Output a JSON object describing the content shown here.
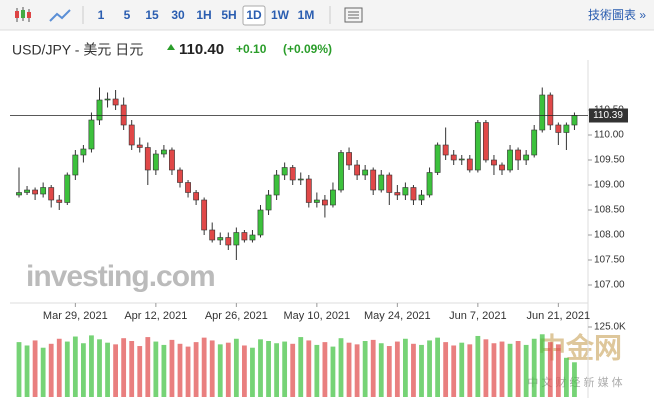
{
  "toolbar": {
    "intervals": [
      "1",
      "5",
      "15",
      "30",
      "1H",
      "5H",
      "1D",
      "1W",
      "1M"
    ],
    "active": "1D",
    "link": "技術圖表 »"
  },
  "header": {
    "instrument": "USD/JPY - 美元 日元",
    "price": "110.40",
    "change": "+0.10",
    "change_pct": "(+0.09%)"
  },
  "chart_data": {
    "type": "candlestick",
    "watermark": "investing.com",
    "watermark_2": "中金网",
    "watermark_3": "中 文 财 经 新 媒 体",
    "last_price_label": 110.39,
    "up_color": "#3cc13c",
    "down_color": "#e04848",
    "categories": [
      null,
      null,
      null,
      null,
      null,
      null,
      null,
      "Mar 29, 2021",
      null,
      null,
      null,
      null,
      null,
      null,
      null,
      null,
      null,
      "Apr 12, 2021",
      null,
      null,
      null,
      null,
      null,
      null,
      null,
      null,
      null,
      "Apr 26, 2021",
      null,
      null,
      null,
      null,
      null,
      null,
      null,
      null,
      null,
      "May 10, 2021",
      null,
      null,
      null,
      null,
      null,
      null,
      null,
      null,
      null,
      "May 24, 2021",
      null,
      null,
      null,
      null,
      null,
      null,
      null,
      null,
      null,
      "Jun 7, 2021",
      null,
      null,
      null,
      null,
      null,
      null,
      null,
      null,
      null,
      "Jun 21, 2021",
      null,
      null
    ],
    "open": [
      108.8,
      108.85,
      108.9,
      108.82,
      108.95,
      108.7,
      108.65,
      109.2,
      109.6,
      109.72,
      110.3,
      110.7,
      110.72,
      110.6,
      110.2,
      109.8,
      109.75,
      109.3,
      109.62,
      109.7,
      109.3,
      109.05,
      108.85,
      108.7,
      108.1,
      107.9,
      107.95,
      107.8,
      108.05,
      107.9,
      108.0,
      108.5,
      108.8,
      109.2,
      109.35,
      109.1,
      109.12,
      108.65,
      108.7,
      108.6,
      108.9,
      109.65,
      109.4,
      109.2,
      109.3,
      108.9,
      109.2,
      108.85,
      108.8,
      108.95,
      108.7,
      108.8,
      109.25,
      109.8,
      109.6,
      109.5,
      109.52,
      109.3,
      110.25,
      109.5,
      109.4,
      109.3,
      109.7,
      109.5,
      109.6,
      110.1,
      110.8,
      110.2,
      110.05,
      110.2
    ],
    "high": [
      109.35,
      108.98,
      108.95,
      109.05,
      109.0,
      108.8,
      109.25,
      109.7,
      109.8,
      110.45,
      110.95,
      110.85,
      110.9,
      110.75,
      110.3,
      109.95,
      109.85,
      109.7,
      109.8,
      109.75,
      109.35,
      109.1,
      108.9,
      108.75,
      108.25,
      108.05,
      108.05,
      108.15,
      108.1,
      108.1,
      108.6,
      108.9,
      109.3,
      109.45,
      109.4,
      109.25,
      109.2,
      108.85,
      108.8,
      109.05,
      109.7,
      109.75,
      109.5,
      109.4,
      109.35,
      109.3,
      109.25,
      109.0,
      109.05,
      109.0,
      108.9,
      109.35,
      109.85,
      110.15,
      109.7,
      109.6,
      109.6,
      110.3,
      110.3,
      109.6,
      109.45,
      109.8,
      109.75,
      109.7,
      110.2,
      110.95,
      110.85,
      110.25,
      110.25,
      110.45
    ],
    "low": [
      108.75,
      108.8,
      108.7,
      108.75,
      108.55,
      108.5,
      108.6,
      109.1,
      109.45,
      109.65,
      110.2,
      110.55,
      110.5,
      110.1,
      109.7,
      109.65,
      109.0,
      109.2,
      109.55,
      109.2,
      108.95,
      108.75,
      108.6,
      108.0,
      107.85,
      107.8,
      107.7,
      107.5,
      107.85,
      107.85,
      107.95,
      108.4,
      108.7,
      109.1,
      109.0,
      109.0,
      108.55,
      108.55,
      108.35,
      108.55,
      108.85,
      109.3,
      109.1,
      109.1,
      108.8,
      108.85,
      108.6,
      108.7,
      108.7,
      108.6,
      108.6,
      108.75,
      109.2,
      109.5,
      109.4,
      109.4,
      109.25,
      109.25,
      109.45,
      109.2,
      109.2,
      109.25,
      109.3,
      109.4,
      109.55,
      110.05,
      110.1,
      109.8,
      109.7,
      110.1
    ],
    "close": [
      108.85,
      108.9,
      108.82,
      108.95,
      108.7,
      108.65,
      109.2,
      109.6,
      109.72,
      110.3,
      110.7,
      110.72,
      110.6,
      110.2,
      109.8,
      109.75,
      109.3,
      109.62,
      109.7,
      109.3,
      109.05,
      108.85,
      108.7,
      108.1,
      107.9,
      107.95,
      107.8,
      108.05,
      107.9,
      108.0,
      108.5,
      108.8,
      109.2,
      109.35,
      109.1,
      109.12,
      108.65,
      108.7,
      108.6,
      108.9,
      109.65,
      109.4,
      109.2,
      109.3,
      108.9,
      109.2,
      108.85,
      108.8,
      108.95,
      108.7,
      108.8,
      109.25,
      109.8,
      109.6,
      109.5,
      109.52,
      109.3,
      110.25,
      109.5,
      109.4,
      109.3,
      109.7,
      109.5,
      109.6,
      110.1,
      110.8,
      110.2,
      110.05,
      110.2,
      110.39
    ],
    "volume": [
      98000,
      92000,
      101000,
      88000,
      95000,
      104000,
      99000,
      108000,
      96000,
      110000,
      103000,
      97000,
      94000,
      105000,
      100000,
      91000,
      107000,
      99000,
      93000,
      102000,
      95000,
      90000,
      98000,
      106000,
      101000,
      94000,
      97000,
      104000,
      92000,
      88000,
      103000,
      100000,
      96000,
      99000,
      95000,
      107000,
      101000,
      93000,
      98000,
      90000,
      105000,
      97000,
      94000,
      100000,
      102000,
      96000,
      91000,
      99000,
      104000,
      95000,
      93000,
      101000,
      106000,
      98000,
      92000,
      97000,
      94000,
      109000,
      103000,
      96000,
      99000,
      95000,
      100000,
      93000,
      104000,
      112000,
      98000,
      94000,
      70000,
      62000
    ],
    "ylim": [
      106.7,
      111.5
    ],
    "yticks": [
      {
        "value": 107,
        "label": "107.00"
      },
      {
        "value": 107.5,
        "label": "107.50"
      },
      {
        "value": 108,
        "label": "108.00"
      },
      {
        "value": 108.5,
        "label": "108.50"
      },
      {
        "value": 109,
        "label": "109.00"
      },
      {
        "value": 109.5,
        "label": "109.50"
      },
      {
        "value": 110,
        "label": "110.00"
      },
      {
        "value": 110.5,
        "label": "110.50"
      }
    ],
    "y2lim": [
      0,
      125000
    ],
    "y2ticks": [
      {
        "value": 125000,
        "label": "125.0K"
      }
    ]
  }
}
